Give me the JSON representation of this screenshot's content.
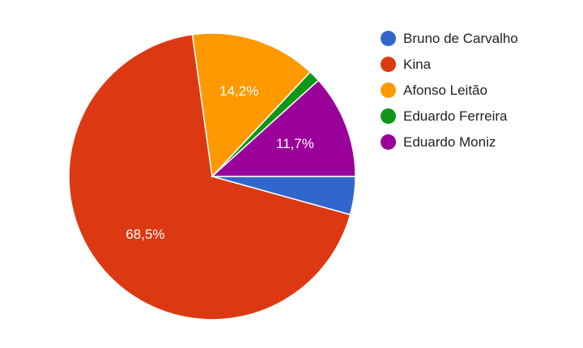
{
  "chart_data": {
    "type": "pie",
    "categories": [
      "Bruno de Carvalho",
      "Kina",
      "Afonso Leitão",
      "Eduardo Ferreira",
      "Eduardo Moniz"
    ],
    "values": [
      4.3,
      68.5,
      14.2,
      1.3,
      11.7
    ],
    "value_labels": [
      null,
      "68,5%",
      "14,2%",
      null,
      "11,7%"
    ],
    "colors": [
      "#3366cc",
      "#dc3912",
      "#ff9900",
      "#109618",
      "#990099"
    ]
  }
}
